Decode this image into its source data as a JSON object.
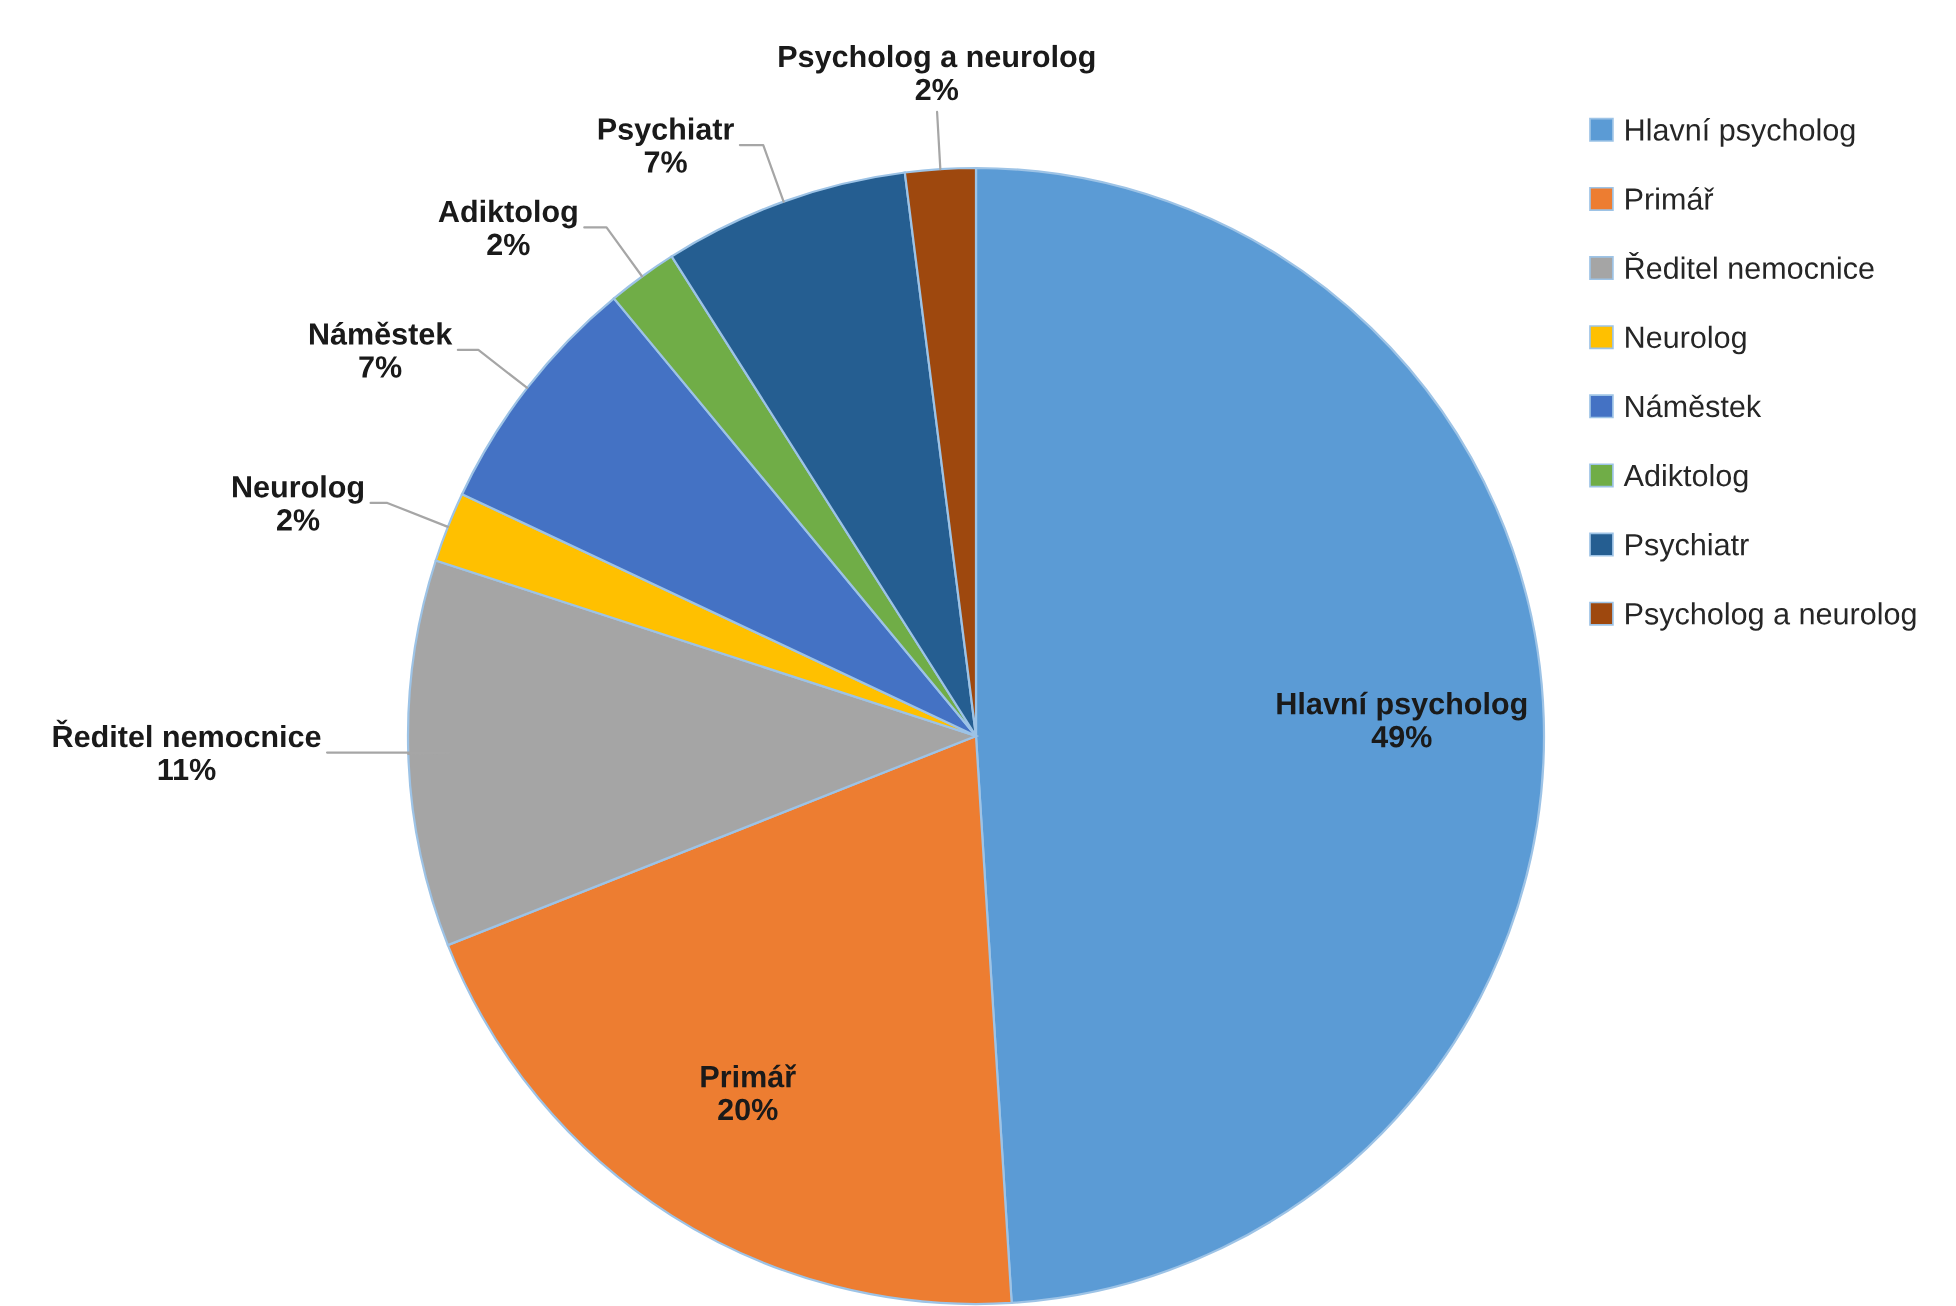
{
  "chart_data": {
    "type": "pie",
    "categories": [
      "Hlavní psycholog",
      "Primář",
      "Ředitel nemocnice",
      "Neurolog",
      "Náměstek",
      "Adiktolog",
      "Psychiatr",
      "Psycholog a neurolog"
    ],
    "values": [
      49,
      20,
      11,
      2,
      7,
      2,
      7,
      2
    ],
    "colors": [
      "#5b9bd5",
      "#ed7d31",
      "#a5a5a5",
      "#ffc000",
      "#4472c4",
      "#70ad47",
      "#255e91",
      "#9e480e"
    ],
    "value_labels": [
      "49%",
      "20%",
      "11%",
      "2%",
      "7%",
      "2%",
      "7%",
      "2%"
    ],
    "legend": "top right"
  }
}
